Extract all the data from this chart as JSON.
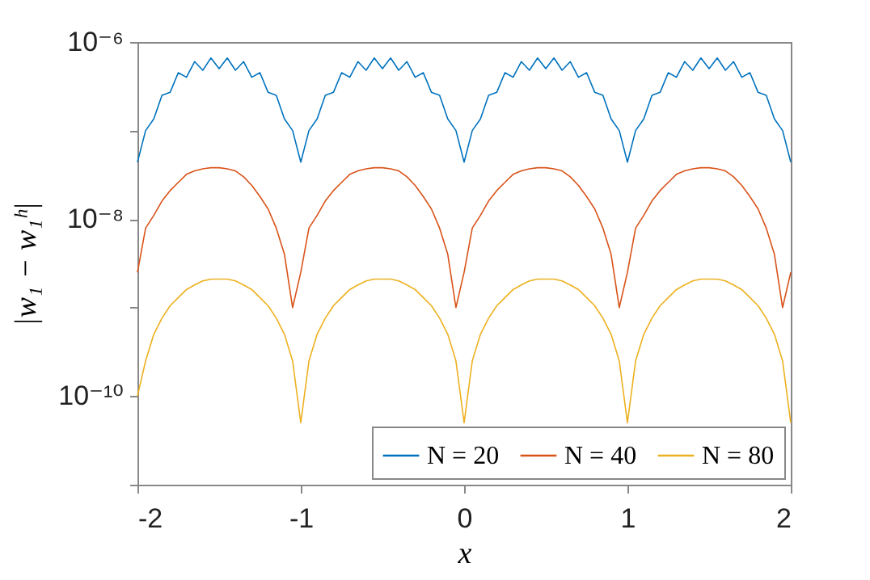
{
  "chart_data": {
    "type": "line",
    "xlabel": "x",
    "ylabel": "|w₁ − w₁ʰ|",
    "log": "y",
    "legend": "bottom right",
    "grid": false,
    "xlim": [
      -2,
      2
    ],
    "xticks": [
      -2,
      -1,
      0,
      1,
      2
    ],
    "ylim": [
      1e-11,
      1e-06
    ],
    "yticks": [
      {
        "value": 1e-06,
        "label": "10⁻⁶"
      },
      {
        "value": 1e-07,
        "label": null
      },
      {
        "value": 1e-08,
        "label": "10⁻⁸"
      },
      {
        "value": 1e-09,
        "label": null
      },
      {
        "value": 1e-10,
        "label": "10⁻¹⁰"
      },
      {
        "value": 1e-11,
        "label": null
      }
    ],
    "x": [
      -2,
      -1.95,
      -1.9,
      -1.85,
      -1.8,
      -1.75,
      -1.7,
      -1.65,
      -1.6,
      -1.55,
      -1.5,
      -1.45,
      -1.4,
      -1.35,
      -1.3,
      -1.25,
      -1.2,
      -1.15,
      -1.1,
      -1.05,
      -1,
      -0.95,
      -0.9,
      -0.85,
      -0.8,
      -0.75,
      -0.7,
      -0.65,
      -0.6,
      -0.55,
      -0.5,
      -0.45,
      -0.4,
      -0.35,
      -0.3,
      -0.25,
      -0.2,
      -0.15,
      -0.1,
      -0.05,
      0,
      0.05,
      0.1,
      0.15,
      0.2,
      0.25,
      0.3,
      0.35,
      0.4,
      0.45,
      0.5,
      0.55,
      0.6,
      0.65,
      0.7,
      0.75,
      0.8,
      0.85,
      0.9,
      0.95,
      1,
      1.05,
      1.1,
      1.15,
      1.2,
      1.25,
      1.3,
      1.35,
      1.4,
      1.45,
      1.5,
      1.55,
      1.6,
      1.65,
      1.7,
      1.75,
      1.8,
      1.85,
      1.9,
      1.95,
      2
    ],
    "series": [
      {
        "name": "N = 20",
        "color": "#0072bd",
        "values": [
          4.4e-08,
          1e-07,
          1.35e-07,
          2.5e-07,
          2.7e-07,
          4.5e-07,
          4e-07,
          6e-07,
          4.8e-07,
          6.6e-07,
          5e-07,
          6.6e-07,
          4.8e-07,
          6e-07,
          4e-07,
          4.5e-07,
          2.7e-07,
          2.5e-07,
          1.35e-07,
          1e-07,
          4.4e-08,
          1e-07,
          1.35e-07,
          2.5e-07,
          2.7e-07,
          4.5e-07,
          4e-07,
          6e-07,
          4.8e-07,
          6.6e-07,
          5e-07,
          6.6e-07,
          4.8e-07,
          6e-07,
          4e-07,
          4.5e-07,
          2.7e-07,
          2.5e-07,
          1.35e-07,
          1e-07,
          4.4e-08,
          1e-07,
          1.35e-07,
          2.5e-07,
          2.7e-07,
          4.5e-07,
          4e-07,
          6e-07,
          4.8e-07,
          6.6e-07,
          5e-07,
          6.6e-07,
          4.8e-07,
          6e-07,
          4e-07,
          4.5e-07,
          2.7e-07,
          2.5e-07,
          1.35e-07,
          1e-07,
          4.4e-08,
          1e-07,
          1.35e-07,
          2.5e-07,
          2.7e-07,
          4.5e-07,
          4e-07,
          6e-07,
          4.8e-07,
          6.6e-07,
          5e-07,
          6.6e-07,
          4.8e-07,
          6e-07,
          4e-07,
          4.5e-07,
          2.7e-07,
          2.5e-07,
          1.35e-07,
          1e-07,
          4.4e-08
        ]
      },
      {
        "name": "N = 40",
        "color": "#d95319",
        "values": [
          2.5e-09,
          7.9e-09,
          1.1e-08,
          1.6e-08,
          2.1e-08,
          2.6e-08,
          3.2e-08,
          3.5e-08,
          3.7e-08,
          3.8e-08,
          3.8e-08,
          3.7e-08,
          3.5e-08,
          3e-08,
          2.4e-08,
          1.8e-08,
          1.3e-08,
          7.9e-09,
          4e-09,
          1e-09,
          2.5e-09,
          7.9e-09,
          1.1e-08,
          1.6e-08,
          2.1e-08,
          2.6e-08,
          3.2e-08,
          3.5e-08,
          3.7e-08,
          3.8e-08,
          3.8e-08,
          3.7e-08,
          3.5e-08,
          3e-08,
          2.4e-08,
          1.8e-08,
          1.3e-08,
          7.9e-09,
          4e-09,
          1e-09,
          2.5e-09,
          7.9e-09,
          1.1e-08,
          1.6e-08,
          2.1e-08,
          2.6e-08,
          3.2e-08,
          3.5e-08,
          3.7e-08,
          3.8e-08,
          3.8e-08,
          3.7e-08,
          3.5e-08,
          3e-08,
          2.4e-08,
          1.8e-08,
          1.3e-08,
          7.9e-09,
          4e-09,
          1e-09,
          2.5e-09,
          7.9e-09,
          1.1e-08,
          1.6e-08,
          2.1e-08,
          2.6e-08,
          3.2e-08,
          3.5e-08,
          3.7e-08,
          3.8e-08,
          3.8e-08,
          3.7e-08,
          3.5e-08,
          3e-08,
          2.4e-08,
          1.8e-08,
          1.3e-08,
          7.9e-09,
          4e-09,
          1e-09,
          2.5e-09
        ]
      },
      {
        "name": "N = 80",
        "color": "#edb120",
        "values": [
          1e-10,
          2.5e-10,
          5e-10,
          7.6e-10,
          1.05e-09,
          1.3e-09,
          1.6e-09,
          1.8e-09,
          2e-09,
          2.1e-09,
          2.1e-09,
          2.1e-09,
          2e-09,
          1.8e-09,
          1.6e-09,
          1.3e-09,
          1.05e-09,
          7.6e-10,
          5e-10,
          2.5e-10,
          5e-11,
          2.5e-10,
          5e-10,
          7.6e-10,
          1.05e-09,
          1.3e-09,
          1.6e-09,
          1.8e-09,
          2e-09,
          2.1e-09,
          2.1e-09,
          2.1e-09,
          2e-09,
          1.8e-09,
          1.6e-09,
          1.3e-09,
          1.05e-09,
          7.6e-10,
          5e-10,
          2.5e-10,
          5e-11,
          2.5e-10,
          5e-10,
          7.6e-10,
          1.05e-09,
          1.3e-09,
          1.6e-09,
          1.8e-09,
          2e-09,
          2.1e-09,
          2.1e-09,
          2.1e-09,
          2e-09,
          1.8e-09,
          1.6e-09,
          1.3e-09,
          1.05e-09,
          7.6e-10,
          5e-10,
          2.5e-10,
          5e-11,
          2.5e-10,
          5e-10,
          7.6e-10,
          1.05e-09,
          1.3e-09,
          1.6e-09,
          1.8e-09,
          2e-09,
          2.1e-09,
          2.1e-09,
          2.1e-09,
          2e-09,
          1.8e-09,
          1.6e-09,
          1.3e-09,
          1.05e-09,
          7.6e-10,
          5e-10,
          2.5e-10,
          5e-11
        ]
      }
    ]
  }
}
